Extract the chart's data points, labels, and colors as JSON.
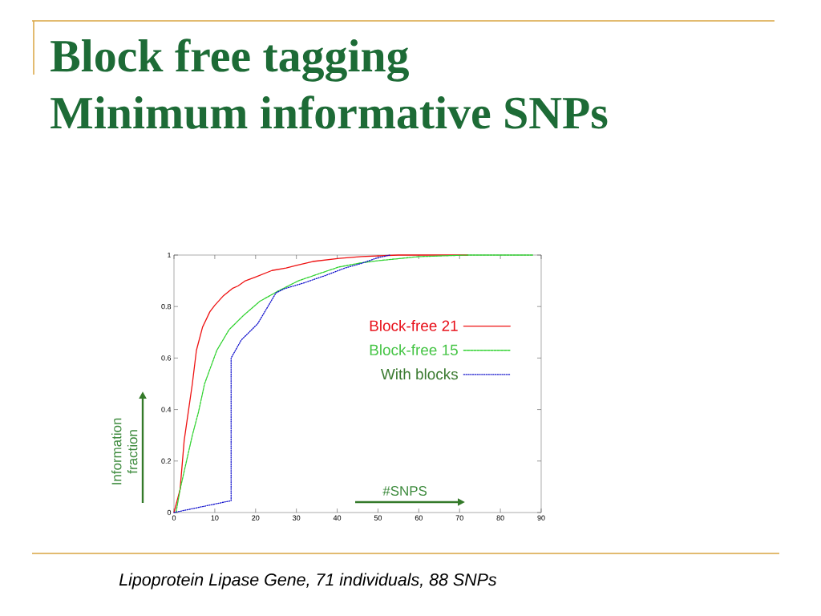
{
  "chart_data": {
    "type": "line",
    "title": "Block free tagging",
    "subtitle": "Minimum informative SNPs",
    "xlabel": "#SNPS",
    "ylabel": "Information fraction",
    "annotations": [
      "Lipoprotein Lipase Gene, 71 individuals, 88 SNPs"
    ],
    "xlim": [
      0,
      90
    ],
    "ylim": [
      0,
      1
    ],
    "xticks": [
      0,
      10,
      20,
      30,
      40,
      50,
      60,
      70,
      80,
      90
    ],
    "yticks": [
      0,
      0.2,
      0.4,
      0.6,
      0.8,
      1
    ],
    "legend": "right",
    "series": [
      {
        "name": "Block-free 21",
        "color": "#ee1111",
        "line_style": "solid",
        "x": [
          0,
          1.5,
          2.5,
          4.5,
          5.5,
          7,
          8.8,
          10,
          12,
          14.3,
          15.7,
          17.5,
          20,
          24,
          27.5,
          30,
          34,
          40.5,
          46,
          55,
          72
        ],
        "values": [
          0,
          0.09,
          0.28,
          0.5,
          0.63,
          0.72,
          0.78,
          0.805,
          0.84,
          0.87,
          0.88,
          0.9,
          0.915,
          0.94,
          0.95,
          0.96,
          0.975,
          0.987,
          0.994,
          1,
          1
        ]
      },
      {
        "name": "Block-free 15",
        "color": "#2fd22f",
        "line_style": "dashed",
        "x": [
          0.5,
          1.5,
          4.5,
          6,
          7.5,
          10.5,
          13.5,
          17,
          21,
          25.5,
          30.5,
          36,
          40.5,
          46,
          50,
          60,
          72,
          88
        ],
        "values": [
          0,
          0.09,
          0.3,
          0.39,
          0.5,
          0.63,
          0.71,
          0.765,
          0.82,
          0.86,
          0.9,
          0.93,
          0.954,
          0.97,
          0.978,
          0.994,
          1,
          1
        ]
      },
      {
        "name": "With blocks",
        "color": "#1010cc",
        "line_style": "dotted",
        "x": [
          0,
          14,
          14,
          16.5,
          20.5,
          25,
          27,
          31.5,
          37,
          42,
          46,
          50,
          53
        ],
        "values": [
          0,
          0.046,
          0.6,
          0.67,
          0.733,
          0.853,
          0.869,
          0.89,
          0.92,
          0.95,
          0.968,
          0.99,
          1
        ]
      }
    ]
  }
}
